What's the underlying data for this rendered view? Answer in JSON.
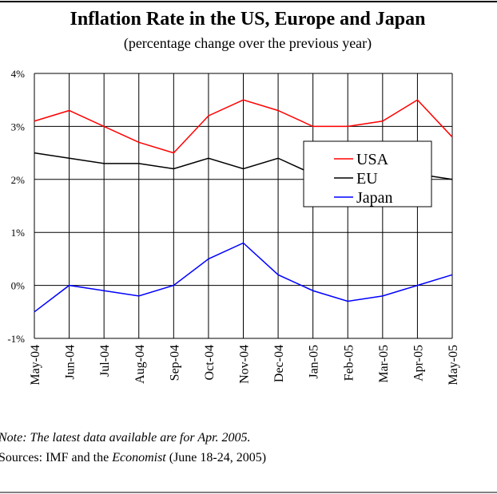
{
  "chart_data": {
    "type": "line",
    "title": "Inflation Rate in the US, Europe and Japan",
    "subtitle": "(percentage change over the previous year)",
    "categories": [
      "May-04",
      "Jun-04",
      "Jul-04",
      "Aug-04",
      "Sep-04",
      "Oct-04",
      "Nov-04",
      "Dec-04",
      "Jan-05",
      "Feb-05",
      "Mar-05",
      "Apr-05",
      "May-05"
    ],
    "series": [
      {
        "name": "USA",
        "color": "#ff0000",
        "values": [
          3.1,
          3.3,
          3.0,
          2.7,
          2.5,
          3.2,
          3.5,
          3.3,
          3.0,
          3.0,
          3.1,
          3.5,
          2.8
        ]
      },
      {
        "name": "EU",
        "color": "#000000",
        "values": [
          2.5,
          2.4,
          2.3,
          2.3,
          2.2,
          2.4,
          2.2,
          2.4,
          2.1,
          2.1,
          2.1,
          2.1,
          2.0
        ]
      },
      {
        "name": "Japan",
        "color": "#0000ff",
        "values": [
          -0.5,
          0.0,
          -0.1,
          -0.2,
          0.0,
          0.5,
          0.8,
          0.2,
          -0.1,
          -0.3,
          -0.2,
          0.0,
          0.2
        ]
      }
    ],
    "ylim": [
      -1,
      4
    ],
    "yticks": [
      {
        "value": -1,
        "label": "-1%"
      },
      {
        "value": 0,
        "label": "0%"
      },
      {
        "value": 1,
        "label": "1%"
      },
      {
        "value": 2,
        "label": "2%"
      },
      {
        "value": 3,
        "label": "3%"
      },
      {
        "value": 4,
        "label": "4%"
      }
    ],
    "grid": true,
    "legend": "center-right",
    "note": "Note: The latest data available are for Apr. 2005.",
    "sources": [
      "Sources: IMF and the",
      "Economist",
      "(June 18-24, 2005)"
    ]
  }
}
